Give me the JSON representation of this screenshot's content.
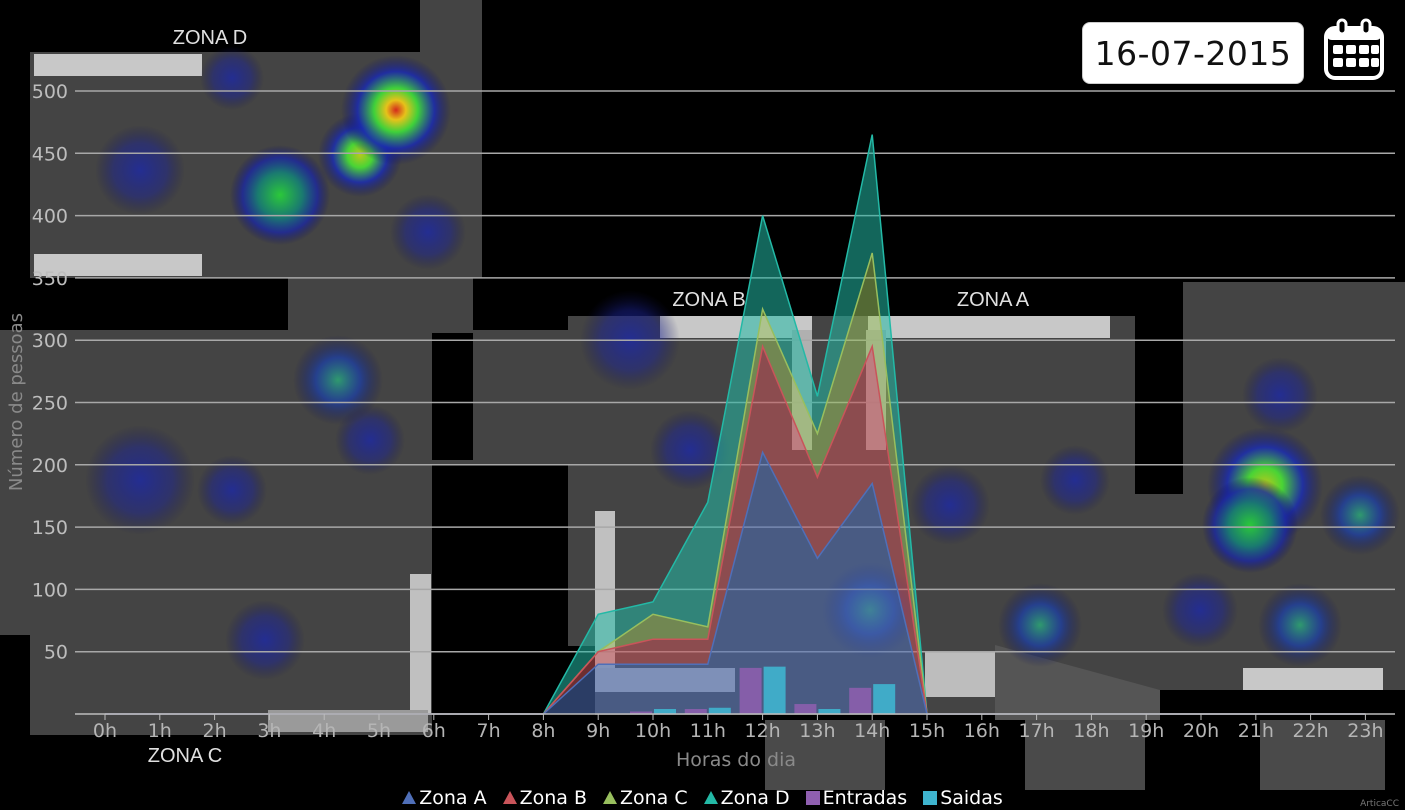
{
  "header": {
    "date": "16-07-2015",
    "calendar_icon": "calendar-icon"
  },
  "zones": {
    "d": "ZONA D",
    "b": "ZONA B",
    "a": "ZONA A",
    "c": "ZONA C"
  },
  "credit": "ArticaCC",
  "colors": {
    "zona_a": "#4f6fb8",
    "zona_b": "#c9545a",
    "zona_c": "#98bf5e",
    "zona_d": "#23b9a6",
    "entradas": "#8f5fb0",
    "saidas": "#3fb4cf"
  },
  "chart_data": {
    "type": "area",
    "title": "",
    "xlabel": "Horas do dia",
    "ylabel": "Número de pessoas",
    "ylim": [
      0,
      500
    ],
    "yticks": [
      50,
      100,
      150,
      200,
      250,
      300,
      350,
      400,
      450,
      500
    ],
    "categories": [
      "0h",
      "1h",
      "2h",
      "3h",
      "4h",
      "5h",
      "6h",
      "7h",
      "8h",
      "9h",
      "10h",
      "11h",
      "12h",
      "13h",
      "14h",
      "15h",
      "16h",
      "17h",
      "18h",
      "19h",
      "20h",
      "21h",
      "22h",
      "23h"
    ],
    "stacked": true,
    "grid": true,
    "legend_position": "bottom",
    "series": [
      {
        "name": "Zona A",
        "type": "area",
        "values": [
          0,
          0,
          0,
          0,
          0,
          0,
          0,
          0,
          0,
          40,
          40,
          40,
          210,
          125,
          185,
          0,
          0,
          0,
          0,
          0,
          0,
          0,
          0,
          0
        ]
      },
      {
        "name": "Zona B",
        "type": "area",
        "values": [
          0,
          0,
          0,
          0,
          0,
          0,
          0,
          0,
          0,
          10,
          20,
          20,
          85,
          65,
          110,
          0,
          0,
          0,
          0,
          0,
          0,
          0,
          0,
          0
        ]
      },
      {
        "name": "Zona C",
        "type": "area",
        "values": [
          0,
          0,
          0,
          0,
          0,
          0,
          0,
          0,
          0,
          0,
          20,
          10,
          30,
          35,
          75,
          0,
          0,
          0,
          0,
          0,
          0,
          0,
          0,
          0
        ]
      },
      {
        "name": "Zona D",
        "type": "area",
        "values": [
          0,
          0,
          0,
          0,
          0,
          0,
          0,
          0,
          0,
          30,
          10,
          100,
          75,
          30,
          95,
          0,
          0,
          0,
          0,
          0,
          0,
          0,
          0,
          0
        ]
      },
      {
        "name": "Entradas",
        "type": "bar",
        "values": [
          0,
          0,
          0,
          0,
          0,
          0,
          0,
          0,
          0,
          0,
          2,
          4,
          37,
          8,
          21,
          0,
          0,
          0,
          0,
          0,
          0,
          0,
          0,
          0
        ]
      },
      {
        "name": "Saidas",
        "type": "bar",
        "values": [
          0,
          0,
          0,
          0,
          0,
          0,
          0,
          0,
          0,
          0,
          4,
          5,
          38,
          4,
          24,
          0,
          0,
          0,
          0,
          0,
          0,
          0,
          0,
          0
        ]
      }
    ]
  }
}
